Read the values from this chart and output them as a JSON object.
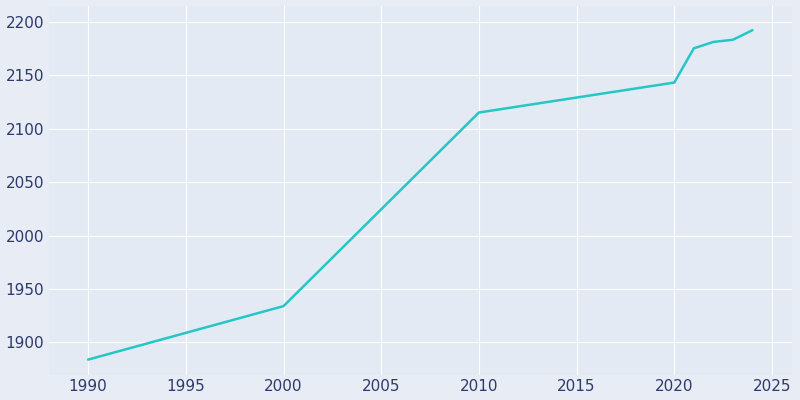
{
  "years": [
    1990,
    2000,
    2010,
    2020,
    2021,
    2022,
    2023,
    2024
  ],
  "population": [
    1884,
    1934,
    2115,
    2143,
    2175,
    2181,
    2183,
    2192
  ],
  "line_color": "#26C6C6",
  "line_width": 1.8,
  "bg_color": "#E8EDF5",
  "plot_bg_color": "#E3EAF4",
  "xlabel": "",
  "ylabel": "",
  "xlim": [
    1988,
    2026
  ],
  "ylim": [
    1870,
    2215
  ],
  "xticks": [
    1990,
    1995,
    2000,
    2005,
    2010,
    2015,
    2020,
    2025
  ],
  "yticks": [
    1900,
    1950,
    2000,
    2050,
    2100,
    2150,
    2200
  ],
  "tick_color": "#2D3A6B",
  "tick_fontsize": 11,
  "grid_color": "#FFFFFF",
  "grid_alpha": 1.0,
  "grid_linewidth": 0.8
}
